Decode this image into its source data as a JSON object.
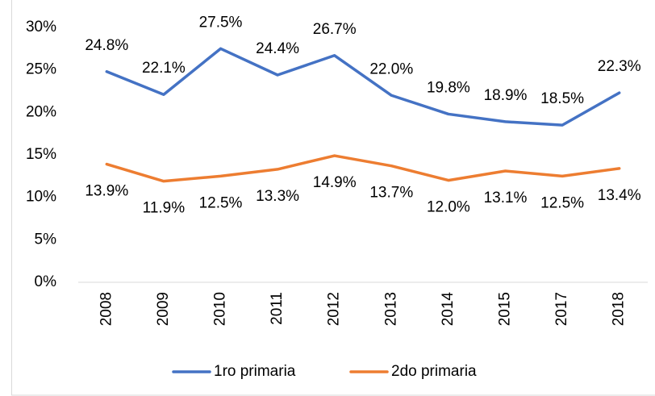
{
  "chart_data": {
    "type": "line",
    "categories": [
      "2008",
      "2009",
      "2010",
      "2011",
      "2012",
      "2013",
      "2014",
      "2015",
      "2017",
      "2018"
    ],
    "series": [
      {
        "name": "1ro primaria",
        "color": "#4472c4",
        "values": [
          24.8,
          22.1,
          27.5,
          24.4,
          26.7,
          22.0,
          19.8,
          18.9,
          18.5,
          22.3
        ],
        "value_labels": [
          "24.8%",
          "22.1%",
          "27.5%",
          "24.4%",
          "26.7%",
          "22.0%",
          "19.8%",
          "18.9%",
          "18.5%",
          "22.3%"
        ]
      },
      {
        "name": "2do primaria",
        "color": "#ed7d31",
        "values": [
          13.9,
          11.9,
          12.5,
          13.3,
          14.9,
          13.7,
          12.0,
          13.1,
          12.5,
          13.4
        ],
        "value_labels": [
          "13.9%",
          "11.9%",
          "12.5%",
          "13.3%",
          "14.9%",
          "13.7%",
          "12.0%",
          "13.1%",
          "12.5%",
          "13.4%"
        ]
      }
    ],
    "ylim": [
      0,
      30
    ],
    "yticks": [
      {
        "value": 0,
        "label": "0%"
      },
      {
        "value": 5,
        "label": "5%"
      },
      {
        "value": 10,
        "label": "10%"
      },
      {
        "value": 15,
        "label": "15%"
      },
      {
        "value": 20,
        "label": "20%"
      },
      {
        "value": 25,
        "label": "25%"
      },
      {
        "value": 30,
        "label": "30%"
      }
    ],
    "legend": "bottom"
  }
}
